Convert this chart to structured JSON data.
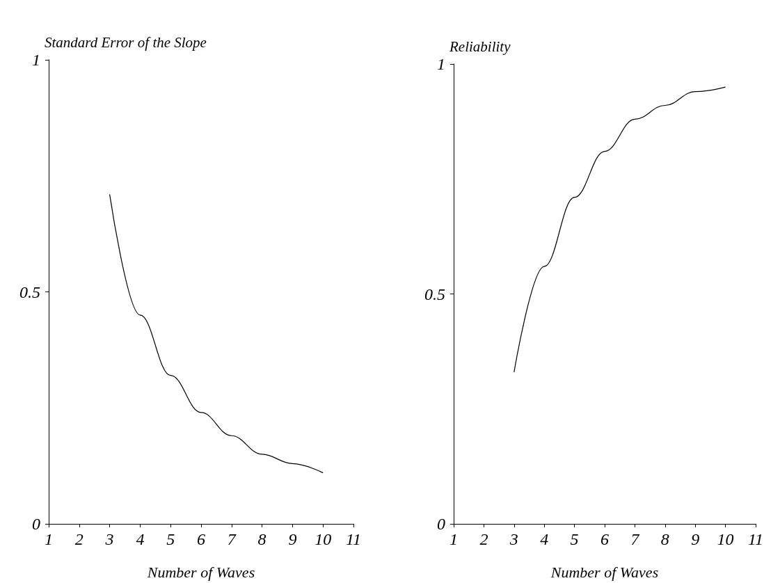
{
  "chart_data": [
    {
      "type": "line",
      "x": [
        3,
        4,
        5,
        6,
        7,
        8,
        9,
        10
      ],
      "values": [
        0.71,
        0.45,
        0.32,
        0.24,
        0.19,
        0.15,
        0.13,
        0.11
      ],
      "color": "#000000",
      "xlim": [
        1,
        11
      ],
      "xticks": [
        1,
        2,
        3,
        4,
        5,
        6,
        7,
        8,
        9,
        10,
        11
      ],
      "ylim": [
        0,
        1
      ],
      "yticks": [
        0,
        0.5,
        1
      ],
      "xlabel": "Number of Waves",
      "ylabel": "Standard Error of the Slope",
      "grid": false,
      "marker": "none"
    },
    {
      "type": "line",
      "x": [
        3,
        4,
        5,
        6,
        7,
        8,
        9,
        10
      ],
      "values": [
        0.33,
        0.56,
        0.71,
        0.81,
        0.88,
        0.91,
        0.94,
        0.95
      ],
      "color": "#000000",
      "xlim": [
        1,
        11
      ],
      "xticks": [
        1,
        2,
        3,
        4,
        5,
        6,
        7,
        8,
        9,
        10,
        11
      ],
      "ylim": [
        0,
        1
      ],
      "yticks": [
        0,
        0.5,
        1
      ],
      "xlabel": "Number of Waves",
      "ylabel": "Reliability",
      "grid": false,
      "marker": "none"
    }
  ]
}
